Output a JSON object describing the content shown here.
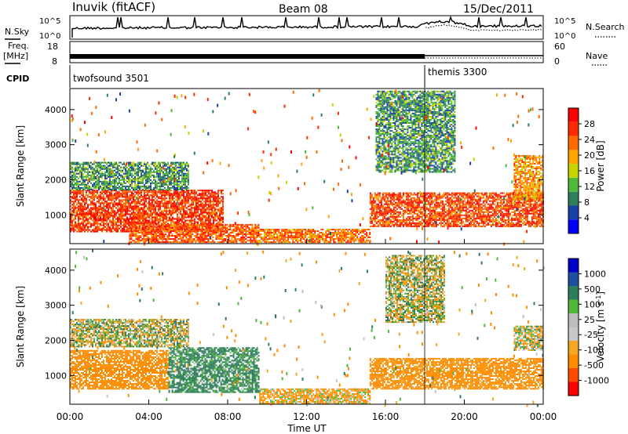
{
  "header": {
    "station": "Inuvik (fitACF)",
    "beam": "Beam 08",
    "date": "15/Dec/2011"
  },
  "top_panels": {
    "nsky_label": "N.Sky",
    "nsky_ticks": [
      "10^5",
      "10^0"
    ],
    "nsearch_label": "N.Search",
    "nsearch_ticks": [
      "10^5",
      "10^0"
    ],
    "freq_label": "Freq.",
    "freq_unit": "[MHz]",
    "freq_ticks": [
      "18",
      "8"
    ],
    "nave_label": "Nave",
    "nave_ticks": [
      "60",
      "0"
    ],
    "cpid_label": "CPID",
    "cpid_modes": [
      {
        "name": "twofsound 3501",
        "start_hour": 0,
        "end_hour": 18
      },
      {
        "name": "themis 3300",
        "start_hour": 18,
        "end_hour": 24
      }
    ]
  },
  "colors": {
    "power_scale": [
      "#0000ff",
      "#1a3fa8",
      "#2f7f5a",
      "#4fba3a",
      "#c8d400",
      "#ffa500",
      "#ff6a00",
      "#ff2a00",
      "#ff0000"
    ],
    "velocity_scale": [
      "#ff0000",
      "#ff4a00",
      "#ff8c00",
      "#f5a623",
      "#c8c8c8",
      "#bdbdbd",
      "#4fb83a",
      "#2e7d5b",
      "#1f4fa0",
      "#0000cc"
    ]
  },
  "chart_data": [
    {
      "type": "heatmap",
      "name": "power",
      "ylabel": "Slant Range [km]",
      "ylim": [
        180,
        4600
      ],
      "yticks": [
        "1000",
        "2000",
        "3000",
        "4000"
      ],
      "colorbar_label": "Power [dB]",
      "colorbar_ticks": [
        "28",
        "24",
        "20",
        "16",
        "12",
        "8",
        "4"
      ],
      "colorbar_range": [
        0,
        30
      ],
      "bands": [
        {
          "x_start": 0,
          "x_end": 7.8,
          "y_low": 500,
          "y_high": 1700,
          "level": 26
        },
        {
          "x_start": 3.0,
          "x_end": 9.6,
          "y_low": 200,
          "y_high": 700,
          "level": 24
        },
        {
          "x_start": 9.6,
          "x_end": 15.2,
          "y_low": 200,
          "y_high": 600,
          "level": 22
        },
        {
          "x_start": 15.2,
          "x_end": 24,
          "y_low": 650,
          "y_high": 1600,
          "level": 25
        },
        {
          "x_start": 0,
          "x_end": 6.0,
          "y_low": 1700,
          "y_high": 2500,
          "level": 9
        },
        {
          "x_start": 15.5,
          "x_end": 19.5,
          "y_low": 2200,
          "y_high": 4500,
          "level": 9
        },
        {
          "x_start": 22.5,
          "x_end": 24,
          "y_low": 1400,
          "y_high": 2700,
          "level": 20
        }
      ]
    },
    {
      "type": "heatmap",
      "name": "velocity",
      "ylabel": "Slant Range [km]",
      "ylim": [
        180,
        4600
      ],
      "yticks": [
        "1000",
        "2000",
        "3000",
        "4000"
      ],
      "colorbar_label": "Velocity [m s",
      "colorbar_label_sup": "-1",
      "colorbar_label_end": "]",
      "colorbar_ticks": [
        "1000",
        "500",
        "100",
        "25",
        "-25",
        "-100",
        "-500",
        "-1000"
      ],
      "bands": [
        {
          "x_start": 0,
          "x_end": 5.0,
          "y_low": 600,
          "y_high": 1700,
          "level": -300
        },
        {
          "x_start": 5.0,
          "x_end": 9.6,
          "y_low": 500,
          "y_high": 1800,
          "level": 200
        },
        {
          "x_start": 9.6,
          "x_end": 15.2,
          "y_low": 180,
          "y_high": 600,
          "level": -100
        },
        {
          "x_start": 15.2,
          "x_end": 24,
          "y_low": 600,
          "y_high": 1500,
          "level": -250
        },
        {
          "x_start": 0,
          "x_end": 6.0,
          "y_low": 1800,
          "y_high": 2600,
          "level": 0
        },
        {
          "x_start": 16.0,
          "x_end": 19.0,
          "y_low": 2500,
          "y_high": 4400,
          "level": 10
        },
        {
          "x_start": 22.5,
          "x_end": 24,
          "y_low": 1700,
          "y_high": 2400,
          "level": 0
        }
      ]
    }
  ],
  "x_axis": {
    "label": "Time UT",
    "ticks": [
      "00:00",
      "04:00",
      "08:00",
      "12:00",
      "16:00",
      "20:00",
      "00:00"
    ],
    "range_hours": [
      0,
      24
    ]
  }
}
